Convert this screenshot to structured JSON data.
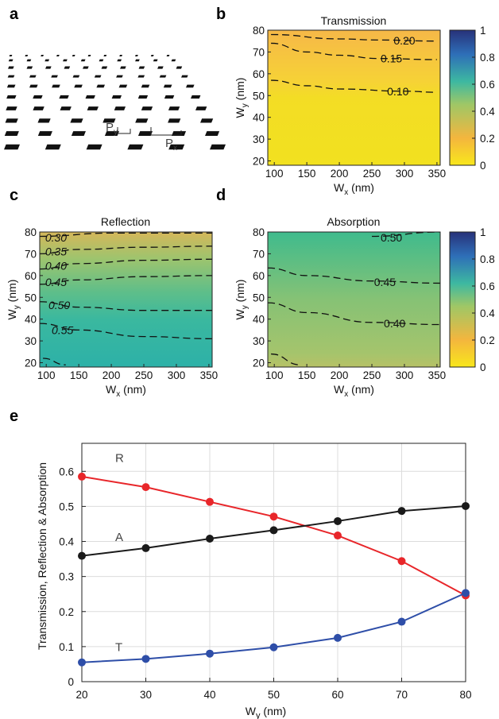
{
  "panels": {
    "a": "a",
    "b": "b",
    "c": "c",
    "d": "d",
    "e": "e"
  },
  "schematic": {
    "py_label": "P",
    "py_sub": "y",
    "px_label": "P",
    "px_sub": "x"
  },
  "colorbar": {
    "ticks": [
      "1",
      "0.8",
      "0.6",
      "0.4",
      "0.2",
      "0"
    ],
    "colors": [
      "#F8E71C",
      "#F4B63E",
      "#9FC766",
      "#3DB8A1",
      "#2E6FB8",
      "#28327A"
    ]
  },
  "chart_data": [
    {
      "type": "heatmap",
      "title": "Transmission",
      "xlabel": "W",
      "xlabel_sub": "x",
      "xlabel_unit": " (nm)",
      "ylabel": "W",
      "ylabel_sub": "y",
      "ylabel_unit": " (nm)",
      "xlim": [
        90,
        355
      ],
      "ylim": [
        18,
        80
      ],
      "xticks": [
        100,
        150,
        200,
        250,
        300,
        350
      ],
      "yticks": [
        20,
        30,
        40,
        50,
        60,
        70,
        80
      ],
      "color_range": [
        0,
        1
      ],
      "contours": [
        {
          "level": "0.20",
          "points": [
            [
              95,
              78
            ],
            [
              200,
              76
            ],
            [
              260,
              75.5
            ],
            [
              350,
              75
            ]
          ],
          "label_x": 300,
          "label_y": 75.3
        },
        {
          "level": "0.15",
          "points": [
            [
              95,
              74
            ],
            [
              150,
              70
            ],
            [
              200,
              68.5
            ],
            [
              260,
              67
            ],
            [
              350,
              66.5
            ]
          ],
          "label_x": 280,
          "label_y": 67
        },
        {
          "level": "0.10",
          "points": [
            [
              95,
              57
            ],
            [
              150,
              54.5
            ],
            [
              200,
              53
            ],
            [
              300,
              52
            ],
            [
              350,
              51.5
            ]
          ],
          "label_x": 290,
          "label_y": 52
        }
      ],
      "colorbar_ticks": [
        0,
        0.2,
        0.4,
        0.6,
        0.8,
        1
      ]
    },
    {
      "type": "heatmap",
      "title": "Reflection",
      "xlabel": "W",
      "xlabel_sub": "x",
      "xlabel_unit": " (nm)",
      "ylabel": "W",
      "ylabel_sub": "y",
      "ylabel_unit": " (nm)",
      "xlim": [
        90,
        355
      ],
      "ylim": [
        18,
        80
      ],
      "xticks": [
        100,
        150,
        200,
        250,
        300,
        350
      ],
      "yticks": [
        20,
        30,
        40,
        50,
        60,
        70,
        80
      ],
      "contours": [
        {
          "level": "0.30",
          "points": [
            [
              90,
              78
            ],
            [
              200,
              79.5
            ],
            [
              355,
              79.5
            ]
          ],
          "label_x": 115,
          "label_y": 77.5
        },
        {
          "level": "0.35",
          "points": [
            [
              90,
              70
            ],
            [
              150,
              72
            ],
            [
              250,
              73
            ],
            [
              355,
              73.5
            ]
          ],
          "label_x": 115,
          "label_y": 71
        },
        {
          "level": "0.40",
          "points": [
            [
              90,
              63
            ],
            [
              150,
              65.5
            ],
            [
              250,
              67
            ],
            [
              355,
              67.5
            ]
          ],
          "label_x": 115,
          "label_y": 64.5
        },
        {
          "level": "0.45",
          "points": [
            [
              90,
              56
            ],
            [
              150,
              58
            ],
            [
              250,
              59.5
            ],
            [
              355,
              60
            ]
          ],
          "label_x": 115,
          "label_y": 57
        },
        {
          "level": "0.50",
          "points": [
            [
              90,
              48
            ],
            [
              150,
              45.5
            ],
            [
              250,
              44
            ],
            [
              355,
              44
            ]
          ],
          "label_x": 120,
          "label_y": 46.5
        },
        {
          "level": "0.55",
          "points": [
            [
              90,
              38
            ],
            [
              150,
              35
            ],
            [
              250,
              32
            ],
            [
              355,
              31
            ]
          ],
          "label_x": 125,
          "label_y": 35
        },
        {
          "level": "",
          "points": [
            [
              95,
              22
            ],
            [
              130,
              19
            ]
          ],
          "label_x": 0,
          "label_y": 0
        }
      ]
    },
    {
      "type": "heatmap",
      "title": "Absorption",
      "xlabel": "W",
      "xlabel_sub": "x",
      "xlabel_unit": " (nm)",
      "ylabel": "W",
      "ylabel_sub": "y",
      "ylabel_unit": " (nm)",
      "xlim": [
        90,
        355
      ],
      "ylim": [
        18,
        80
      ],
      "xticks": [
        100,
        150,
        200,
        250,
        300,
        350
      ],
      "yticks": [
        20,
        30,
        40,
        50,
        60,
        70,
        80
      ],
      "contours": [
        {
          "level": "0.50",
          "points": [
            [
              250,
              78
            ],
            [
              355,
              80
            ]
          ],
          "label_x": 280,
          "label_y": 77.5
        },
        {
          "level": "0.45",
          "points": [
            [
              90,
              63.5
            ],
            [
              150,
              60
            ],
            [
              250,
              57.5
            ],
            [
              355,
              56.5
            ]
          ],
          "label_x": 270,
          "label_y": 57
        },
        {
          "level": "0.40",
          "points": [
            [
              90,
              47.5
            ],
            [
              150,
              43
            ],
            [
              250,
              38.5
            ],
            [
              355,
              37.5
            ]
          ],
          "label_x": 285,
          "label_y": 38
        },
        {
          "level": "",
          "points": [
            [
              95,
              24
            ],
            [
              140,
              19
            ]
          ],
          "label_x": 0,
          "label_y": 0
        }
      ],
      "colorbar_ticks": [
        0,
        0.2,
        0.4,
        0.6,
        0.8,
        1
      ]
    },
    {
      "type": "line",
      "title": "",
      "xlabel": "W",
      "xlabel_sub": "y",
      "xlabel_unit": " (nm)",
      "ylabel": "Transmission, Reflection & Absorption",
      "x": [
        20,
        30,
        40,
        50,
        60,
        70,
        80
      ],
      "xlim": [
        20,
        80
      ],
      "ylim": [
        0,
        0.68
      ],
      "xticks": [
        20,
        30,
        40,
        50,
        60,
        70,
        80
      ],
      "yticks": [
        0,
        0.1,
        0.2,
        0.3,
        0.4,
        0.5,
        0.6
      ],
      "grid": true,
      "series": [
        {
          "name": "R",
          "color": "#E8262A",
          "values": [
            0.585,
            0.555,
            0.513,
            0.471,
            0.417,
            0.344,
            0.246
          ]
        },
        {
          "name": "A",
          "color": "#1A1A1A",
          "values": [
            0.359,
            0.381,
            0.408,
            0.432,
            0.458,
            0.487,
            0.501
          ]
        },
        {
          "name": "T",
          "color": "#2E4EA8",
          "values": [
            0.055,
            0.065,
            0.08,
            0.098,
            0.125,
            0.171,
            0.253
          ]
        }
      ]
    }
  ]
}
